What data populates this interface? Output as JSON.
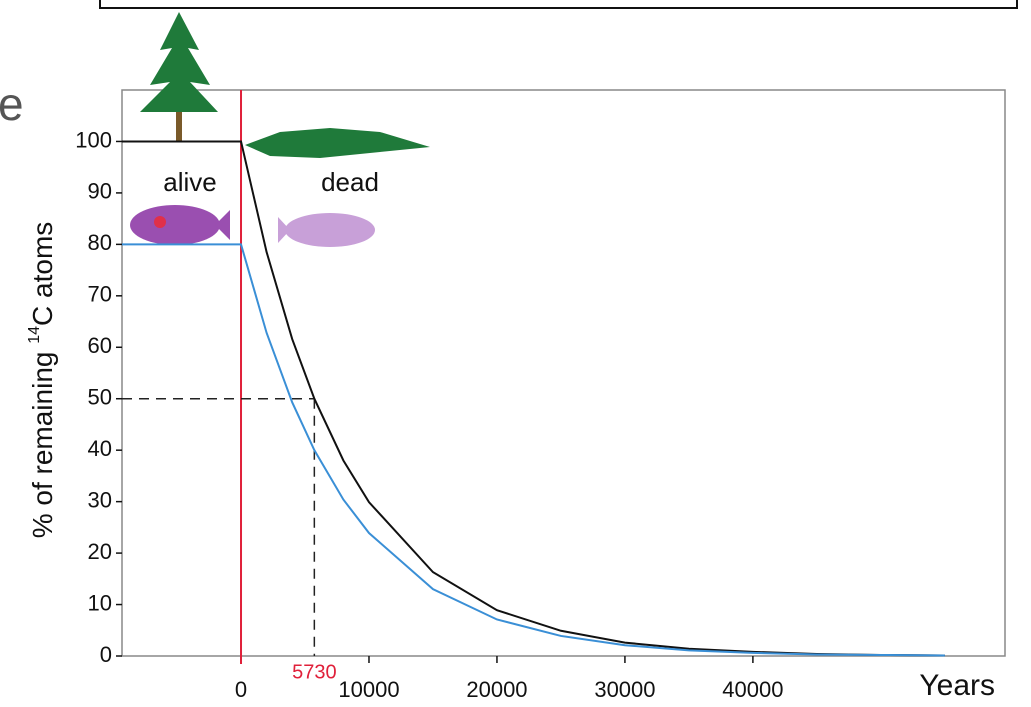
{
  "cut_text": "e",
  "chart_data": {
    "type": "line",
    "y_label_parts": [
      "% of remaining ",
      "14",
      "C atoms"
    ],
    "x_label": "Years",
    "annotations": {
      "alive": "alive",
      "dead": "dead"
    },
    "xlim": [
      -9300,
      59700
    ],
    "ylim": [
      0,
      110
    ],
    "xticks": [
      0,
      10000,
      20000,
      30000,
      40000
    ],
    "yticks": [
      0,
      10,
      20,
      30,
      40,
      50,
      60,
      70,
      80,
      90,
      100
    ],
    "marker_x": 0,
    "reference": {
      "x": 5730,
      "y": 50
    },
    "series": [
      {
        "color": "#111111",
        "x": [
          -9300,
          0,
          2000,
          4000,
          5730,
          8000,
          10000,
          15000,
          20000,
          25000,
          30000,
          35000,
          40000,
          45000,
          50000,
          55000
        ],
        "values": [
          100,
          100,
          78.5,
          61.6,
          50,
          38.0,
          29.9,
          16.3,
          8.9,
          4.9,
          2.6,
          1.4,
          0.8,
          0.4,
          0.2,
          0.1
        ]
      },
      {
        "color": "#3a8fd6",
        "x": [
          -9300,
          0,
          2000,
          4000,
          5730,
          8000,
          10000,
          15000,
          20000,
          25000,
          30000,
          35000,
          40000,
          45000,
          50000,
          55000
        ],
        "values": [
          80,
          80,
          62.8,
          49.3,
          40,
          30.4,
          23.9,
          13.0,
          7.1,
          3.9,
          2.1,
          1.1,
          0.6,
          0.3,
          0.2,
          0.1
        ]
      }
    ]
  }
}
